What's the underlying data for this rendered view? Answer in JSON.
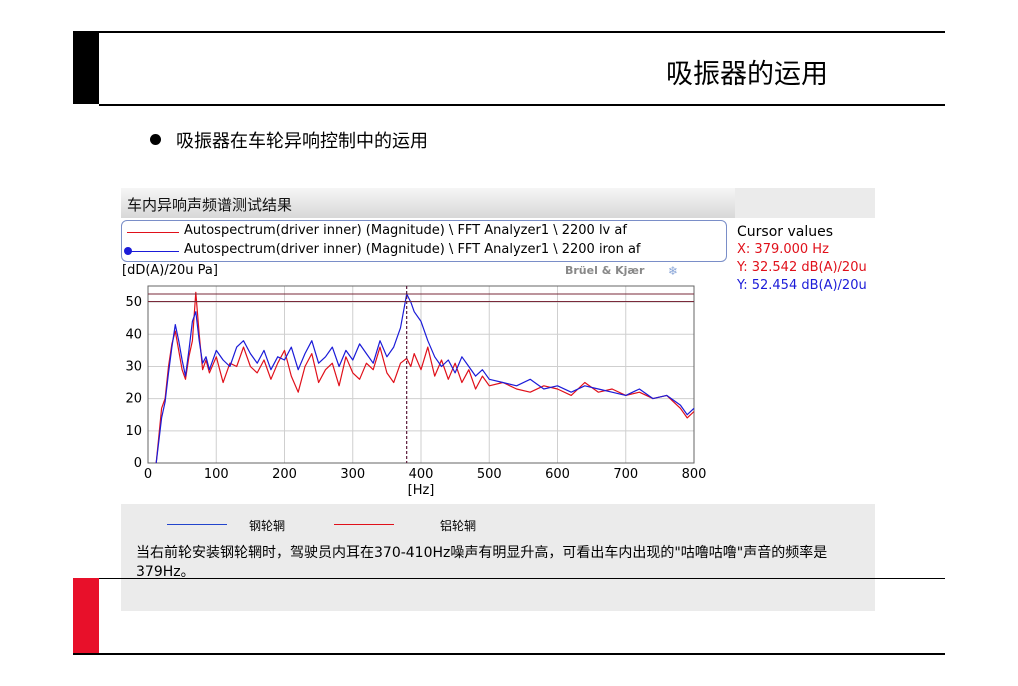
{
  "slide": {
    "title": "吸振器的运用",
    "bullet": "吸振器在车轮异响控制中的运用",
    "accent_red": "#e8102a"
  },
  "panel": {
    "title": "车内异响声频谱测试结果",
    "y_unit": "[dD(A)/20u Pa]",
    "brand": "Brüel & Kjær",
    "brand_icon": "bk-logo-icon"
  },
  "legend": {
    "entries": [
      {
        "label": "Autospectrum(driver inner) (Magnitude) \\ FFT Analyzer1 \\ 2200 lv af",
        "color": "#e0101a"
      },
      {
        "label": "Autospectrum(driver inner) (Magnitude) \\ FFT Analyzer1 \\ 2200 iron af",
        "color": "#1b1bd8"
      }
    ]
  },
  "cursor": {
    "title": "Cursor values",
    "x": "X: 379.000 Hz",
    "y1": "Y: 32.542 dB(A)/20u",
    "y2": "Y: 52.454 dB(A)/20u"
  },
  "bottom_legend": {
    "steel_label": "钢轮辋",
    "aluminum_label": "铝轮辋"
  },
  "caption": "当右前轮安装钢轮辋时，驾驶员内耳在370-410Hz噪声有明显升高，可看出车内出现的\"咕噜咕噜\"声音的频率是379Hz。",
  "chart_data": {
    "type": "line",
    "xlabel": "[Hz]",
    "ylabel": "[dD(A)/20u Pa]",
    "xlim": [
      0,
      800
    ],
    "ylim": [
      0,
      55
    ],
    "xticks": [
      0,
      100,
      200,
      300,
      400,
      500,
      600,
      700,
      800
    ],
    "yticks": [
      0,
      10,
      20,
      30,
      40,
      50
    ],
    "grid": true,
    "cursor_x": 379,
    "cursor_y_lines": [
      52.5,
      50.2
    ],
    "series": [
      {
        "name": "Autospectrum(driver inner) (Magnitude) \\ FFT Analyzer1 \\ 2200 lv af",
        "color": "#e0101a",
        "x": [
          12,
          20,
          25,
          30,
          35,
          40,
          45,
          50,
          55,
          60,
          65,
          70,
          75,
          80,
          85,
          90,
          100,
          110,
          120,
          130,
          140,
          150,
          160,
          170,
          180,
          190,
          200,
          210,
          220,
          230,
          240,
          250,
          260,
          270,
          280,
          290,
          300,
          310,
          320,
          330,
          340,
          350,
          360,
          370,
          379,
          385,
          390,
          400,
          410,
          420,
          430,
          440,
          450,
          460,
          470,
          480,
          490,
          500,
          520,
          540,
          560,
          580,
          600,
          620,
          640,
          660,
          680,
          700,
          720,
          740,
          760,
          780,
          790,
          800
        ],
        "y": [
          0,
          17,
          20,
          30,
          37,
          41,
          35,
          29,
          26,
          33,
          38,
          53,
          40,
          29,
          32,
          28,
          33,
          25,
          31,
          30,
          36,
          30,
          28,
          32,
          26,
          31,
          35,
          27,
          22,
          30,
          34,
          25,
          29,
          31,
          24,
          33,
          28,
          26,
          31,
          29,
          36,
          28,
          25,
          31,
          32.5,
          30,
          34,
          29,
          36,
          27,
          32,
          26,
          31,
          25,
          29,
          23,
          27,
          24,
          25,
          23,
          22,
          24,
          23,
          21,
          25,
          22,
          23,
          21,
          22,
          20,
          21,
          17,
          14,
          16
        ]
      },
      {
        "name": "Autospectrum(driver inner) (Magnitude) \\ FFT Analyzer1 \\ 2200 iron af",
        "color": "#1b1bd8",
        "x": [
          12,
          20,
          25,
          30,
          35,
          40,
          45,
          50,
          55,
          60,
          65,
          70,
          75,
          80,
          85,
          90,
          100,
          110,
          120,
          130,
          140,
          150,
          160,
          170,
          180,
          190,
          200,
          210,
          220,
          230,
          240,
          250,
          260,
          270,
          280,
          290,
          300,
          310,
          320,
          330,
          340,
          350,
          360,
          370,
          379,
          385,
          390,
          400,
          410,
          420,
          430,
          440,
          450,
          460,
          470,
          480,
          490,
          500,
          520,
          540,
          560,
          580,
          600,
          620,
          640,
          660,
          680,
          700,
          720,
          740,
          760,
          780,
          790,
          800
        ],
        "y": [
          0,
          14,
          19,
          28,
          36,
          43,
          38,
          32,
          27,
          35,
          44,
          47,
          38,
          31,
          33,
          29,
          35,
          32,
          30,
          36,
          38,
          34,
          31,
          35,
          29,
          33,
          32,
          36,
          29,
          34,
          38,
          31,
          33,
          36,
          30,
          35,
          32,
          37,
          34,
          31,
          38,
          33,
          36,
          42,
          52.5,
          50,
          47,
          44,
          38,
          33,
          30,
          32,
          28,
          33,
          30,
          27,
          29,
          26,
          25,
          24,
          26,
          23,
          24,
          22,
          24,
          23,
          22,
          21,
          23,
          20,
          21,
          18,
          15,
          17
        ]
      }
    ]
  }
}
